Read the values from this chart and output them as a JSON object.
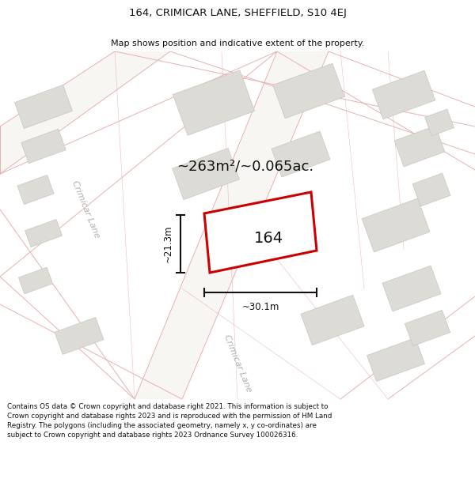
{
  "title_line1": "164, CRIMICAR LANE, SHEFFIELD, S10 4EJ",
  "title_line2": "Map shows position and indicative extent of the property.",
  "area_text": "~263m²/~0.065ac.",
  "label_164": "164",
  "dim_width": "~30.1m",
  "dim_height": "~21.3m",
  "street_label1": "Crimicar Lane",
  "street_label2": "Crimicar Lane",
  "footer_text": "Contains OS data © Crown copyright and database right 2021. This information is subject to Crown copyright and database rights 2023 and is reproduced with the permission of HM Land Registry. The polygons (including the associated geometry, namely x, y co-ordinates) are subject to Crown copyright and database rights 2023 Ordnance Survey 100026316.",
  "map_bg": "#f0efec",
  "building_fill": "#dddbd6",
  "building_edge": "#c8c6c0",
  "road_line_color": "#e8b0b0",
  "plot_edge_color": "#cc0000",
  "dim_line_color": "#111111",
  "title_color": "#111111",
  "footer_color": "#111111",
  "street_text_color": "#b0b0b0",
  "road_fill": "#f8f6f3"
}
